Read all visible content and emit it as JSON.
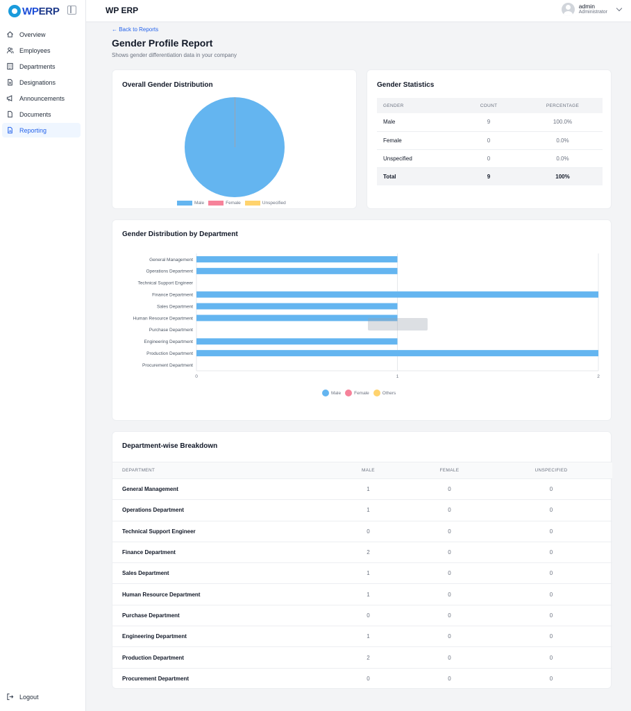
{
  "brand": {
    "wp": "WP",
    "erp": "ERP"
  },
  "sidebar": {
    "items": [
      {
        "label": "Overview",
        "icon": "home-icon"
      },
      {
        "label": "Employees",
        "icon": "users-icon"
      },
      {
        "label": "Departments",
        "icon": "building-icon"
      },
      {
        "label": "Designations",
        "icon": "file-icon"
      },
      {
        "label": "Announcements",
        "icon": "megaphone-icon"
      },
      {
        "label": "Documents",
        "icon": "document-icon"
      },
      {
        "label": "Reporting",
        "icon": "report-icon",
        "active": true
      }
    ],
    "logout": "Logout"
  },
  "header": {
    "title": "WP ERP",
    "user_name": "admin",
    "user_role": "Administrator"
  },
  "page": {
    "back": "← Back to Reports",
    "title": "Gender Profile Report",
    "subtitle": "Shows gender differentiation data in your company"
  },
  "colors": {
    "male": "#64b5f0",
    "female": "#f6829a",
    "unspecified": "#ffd36e",
    "accent": "#2563eb"
  },
  "pie_card": {
    "title": "Overall Gender Distribution",
    "legend": [
      "Male",
      "Female",
      "Unspecified"
    ]
  },
  "stats": {
    "title": "Gender Statistics",
    "headers": [
      "GENDER",
      "COUNT",
      "PERCENTAGE"
    ],
    "rows": [
      {
        "gender": "Male",
        "count": "9",
        "percentage": "100.0%"
      },
      {
        "gender": "Female",
        "count": "0",
        "percentage": "0.0%"
      },
      {
        "gender": "Unspecified",
        "count": "0",
        "percentage": "0.0%"
      }
    ],
    "total": {
      "gender": "Total",
      "count": "9",
      "percentage": "100%"
    }
  },
  "bar_card": {
    "title": "Gender Distribution by Department",
    "legend": [
      "Male",
      "Female",
      "Others"
    ]
  },
  "chart_data": [
    {
      "type": "pie",
      "title": "Overall Gender Distribution",
      "categories": [
        "Male",
        "Female",
        "Unspecified"
      ],
      "values": [
        9,
        0,
        0
      ]
    },
    {
      "type": "bar",
      "orientation": "horizontal",
      "title": "Gender Distribution by Department",
      "categories": [
        "General Management",
        "Operations Department",
        "Technical Support Engineer",
        "Finance Department",
        "Sales Department",
        "Human Resource Department",
        "Purchase Department",
        "Engineering Department",
        "Production Department",
        "Procurement Department"
      ],
      "series": [
        {
          "name": "Male",
          "values": [
            1,
            1,
            0,
            2,
            1,
            1,
            0,
            1,
            2,
            0
          ]
        },
        {
          "name": "Female",
          "values": [
            0,
            0,
            0,
            0,
            0,
            0,
            0,
            0,
            0,
            0
          ]
        },
        {
          "name": "Others",
          "values": [
            0,
            0,
            0,
            0,
            0,
            0,
            0,
            0,
            0,
            0
          ]
        }
      ],
      "xlim": [
        0,
        2
      ],
      "xticks": [
        "0",
        "1",
        "2"
      ],
      "legend": "bottom"
    }
  ],
  "breakdown": {
    "title": "Department-wise Breakdown",
    "headers": [
      "DEPARTMENT",
      "MALE",
      "FEMALE",
      "UNSPECIFIED"
    ],
    "rows": [
      {
        "dept": "General Management",
        "male": "1",
        "female": "0",
        "unspecified": "0"
      },
      {
        "dept": "Operations Department",
        "male": "1",
        "female": "0",
        "unspecified": "0"
      },
      {
        "dept": "Technical Support Engineer",
        "male": "0",
        "female": "0",
        "unspecified": "0"
      },
      {
        "dept": "Finance Department",
        "male": "2",
        "female": "0",
        "unspecified": "0"
      },
      {
        "dept": "Sales Department",
        "male": "1",
        "female": "0",
        "unspecified": "0"
      },
      {
        "dept": "Human Resource Department",
        "male": "1",
        "female": "0",
        "unspecified": "0"
      },
      {
        "dept": "Purchase Department",
        "male": "0",
        "female": "0",
        "unspecified": "0"
      },
      {
        "dept": "Engineering Department",
        "male": "1",
        "female": "0",
        "unspecified": "0"
      },
      {
        "dept": "Production Department",
        "male": "2",
        "female": "0",
        "unspecified": "0"
      },
      {
        "dept": "Procurement Department",
        "male": "0",
        "female": "0",
        "unspecified": "0"
      }
    ]
  }
}
